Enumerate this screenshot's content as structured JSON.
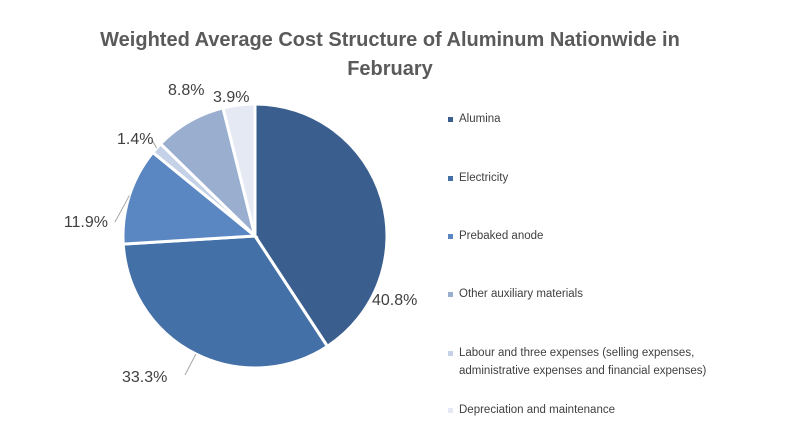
{
  "chart_data": {
    "type": "pie",
    "title": "Weighted Average Cost Structure of Aluminum Nationwide in February",
    "legend_position": "right",
    "slices": [
      {
        "name": "Alumina",
        "value": 40.8,
        "label": "40.8%",
        "color": "#3a5f8f"
      },
      {
        "name": "Electricity",
        "value": 33.3,
        "label": "33.3%",
        "color": "#4470a8"
      },
      {
        "name": "Prebaked anode",
        "value": 11.9,
        "label": "11.9%",
        "color": "#5a86c2"
      },
      {
        "name": "Labour and three expenses (selling expenses, administrative expenses and financial expenses)",
        "value": 1.4,
        "label": "1.4%",
        "color": "#c4d1e6"
      },
      {
        "name": "Other auxiliary materials",
        "value": 8.8,
        "label": "8.8%",
        "color": "#9aaed0"
      },
      {
        "name": "Depreciation and maintenance",
        "value": 3.9,
        "label": "3.9%",
        "color": "#e4e9f3"
      }
    ]
  },
  "legend": [
    {
      "label": "Alumina",
      "color": "#3a5f8f"
    },
    {
      "label": "Electricity",
      "color": "#4470a8"
    },
    {
      "label": "Prebaked anode",
      "color": "#5a86c2"
    },
    {
      "label": "Other auxiliary materials",
      "color": "#9aaed0"
    },
    {
      "label": "Labour and three expenses (selling expenses, administrative expenses and financial expenses)",
      "color": "#c4d1e6"
    },
    {
      "label": "Depreciation and maintenance",
      "color": "#e4e9f3"
    }
  ]
}
